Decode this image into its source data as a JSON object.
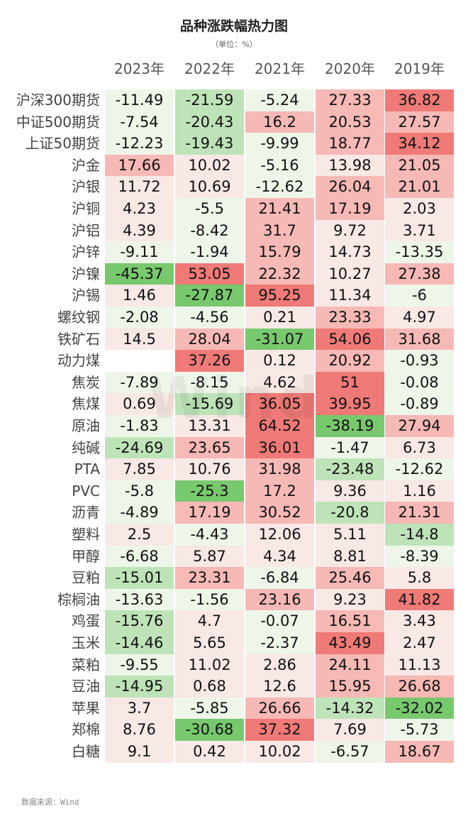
{
  "chart_data": {
    "type": "heatmap",
    "title": "品种涨跌幅热力图",
    "unit": "（单位：%）",
    "columns": [
      "2023年",
      "2022年",
      "2021年",
      "2020年",
      "2019年"
    ],
    "rows": [
      "沪深300期货",
      "中证500期货",
      "上证50期货",
      "沪金",
      "沪银",
      "沪铜",
      "沪铝",
      "沪锌",
      "沪镍",
      "沪锡",
      "螺纹钢",
      "铁矿石",
      "动力煤",
      "焦炭",
      "焦煤",
      "原油",
      "纯碱",
      "PTA",
      "PVC",
      "沥青",
      "塑料",
      "甲醇",
      "豆粕",
      "棕榈油",
      "鸡蛋",
      "玉米",
      "菜粕",
      "豆油",
      "苹果",
      "郑棉",
      "白糖"
    ],
    "values": [
      [
        "-11.49",
        "-21.59",
        "-5.24",
        "27.33",
        "36.82"
      ],
      [
        "-7.54",
        "-20.43",
        "16.2",
        "20.53",
        "27.57"
      ],
      [
        "-12.23",
        "-19.43",
        "-9.99",
        "18.77",
        "34.12"
      ],
      [
        "17.66",
        "10.02",
        "-5.16",
        "13.98",
        "21.05"
      ],
      [
        "11.72",
        "10.69",
        "-12.62",
        "26.04",
        "21.01"
      ],
      [
        "4.23",
        "-5.5",
        "21.41",
        "17.19",
        "2.03"
      ],
      [
        "4.39",
        "-8.42",
        "31.7",
        "9.72",
        "3.71"
      ],
      [
        "-9.11",
        "-1.94",
        "15.79",
        "14.73",
        "-13.35"
      ],
      [
        "-45.37",
        "53.05",
        "22.32",
        "10.27",
        "27.38"
      ],
      [
        "1.46",
        "-27.87",
        "95.25",
        "11.34",
        "-6"
      ],
      [
        "-2.08",
        "-4.56",
        "0.21",
        "23.33",
        "4.97"
      ],
      [
        "14.5",
        "28.04",
        "-31.07",
        "54.06",
        "31.68"
      ],
      [
        "",
        "37.26",
        "0.12",
        "20.92",
        "-0.93"
      ],
      [
        "-7.89",
        "-8.15",
        "4.62",
        "51",
        "-0.08"
      ],
      [
        "0.69",
        "-15.69",
        "36.05",
        "39.95",
        "-0.89"
      ],
      [
        "-1.83",
        "13.31",
        "64.52",
        "-38.19",
        "27.94"
      ],
      [
        "-24.69",
        "23.65",
        "36.01",
        "-1.47",
        "6.73"
      ],
      [
        "7.85",
        "10.76",
        "31.98",
        "-23.48",
        "-12.62"
      ],
      [
        "-5.8",
        "-25.3",
        "17.2",
        "9.36",
        "1.16"
      ],
      [
        "-4.89",
        "17.19",
        "30.52",
        "-20.8",
        "21.31"
      ],
      [
        "2.5",
        "-4.43",
        "12.06",
        "5.11",
        "-14.8"
      ],
      [
        "-6.68",
        "5.87",
        "4.34",
        "8.81",
        "-8.39"
      ],
      [
        "-15.01",
        "23.31",
        "-6.84",
        "25.46",
        "5.8"
      ],
      [
        "-13.63",
        "-1.56",
        "23.16",
        "9.23",
        "41.82"
      ],
      [
        "-15.76",
        "4.7",
        "-0.07",
        "16.51",
        "3.43"
      ],
      [
        "-14.46",
        "5.65",
        "-2.37",
        "43.49",
        "2.47"
      ],
      [
        "-9.55",
        "11.02",
        "2.86",
        "24.11",
        "11.13"
      ],
      [
        "-14.95",
        "0.68",
        "12.6",
        "15.95",
        "26.68"
      ],
      [
        "3.7",
        "-5.85",
        "26.66",
        "-14.32",
        "-32.02"
      ],
      [
        "8.76",
        "-30.68",
        "37.32",
        "7.69",
        "-5.73"
      ],
      [
        "9.1",
        "0.42",
        "10.02",
        "-6.57",
        "18.67"
      ]
    ],
    "colors": {
      "positive_light": "#f8e8e6",
      "positive_mid": "#f6b9b6",
      "positive_strong": "#f07a77",
      "negative_light": "#eef6ea",
      "negative_mid": "#bfe3b9",
      "negative_strong": "#78c86e",
      "empty": "#ffffff"
    }
  },
  "watermark": "Wind",
  "source": "数据来源：Wind"
}
